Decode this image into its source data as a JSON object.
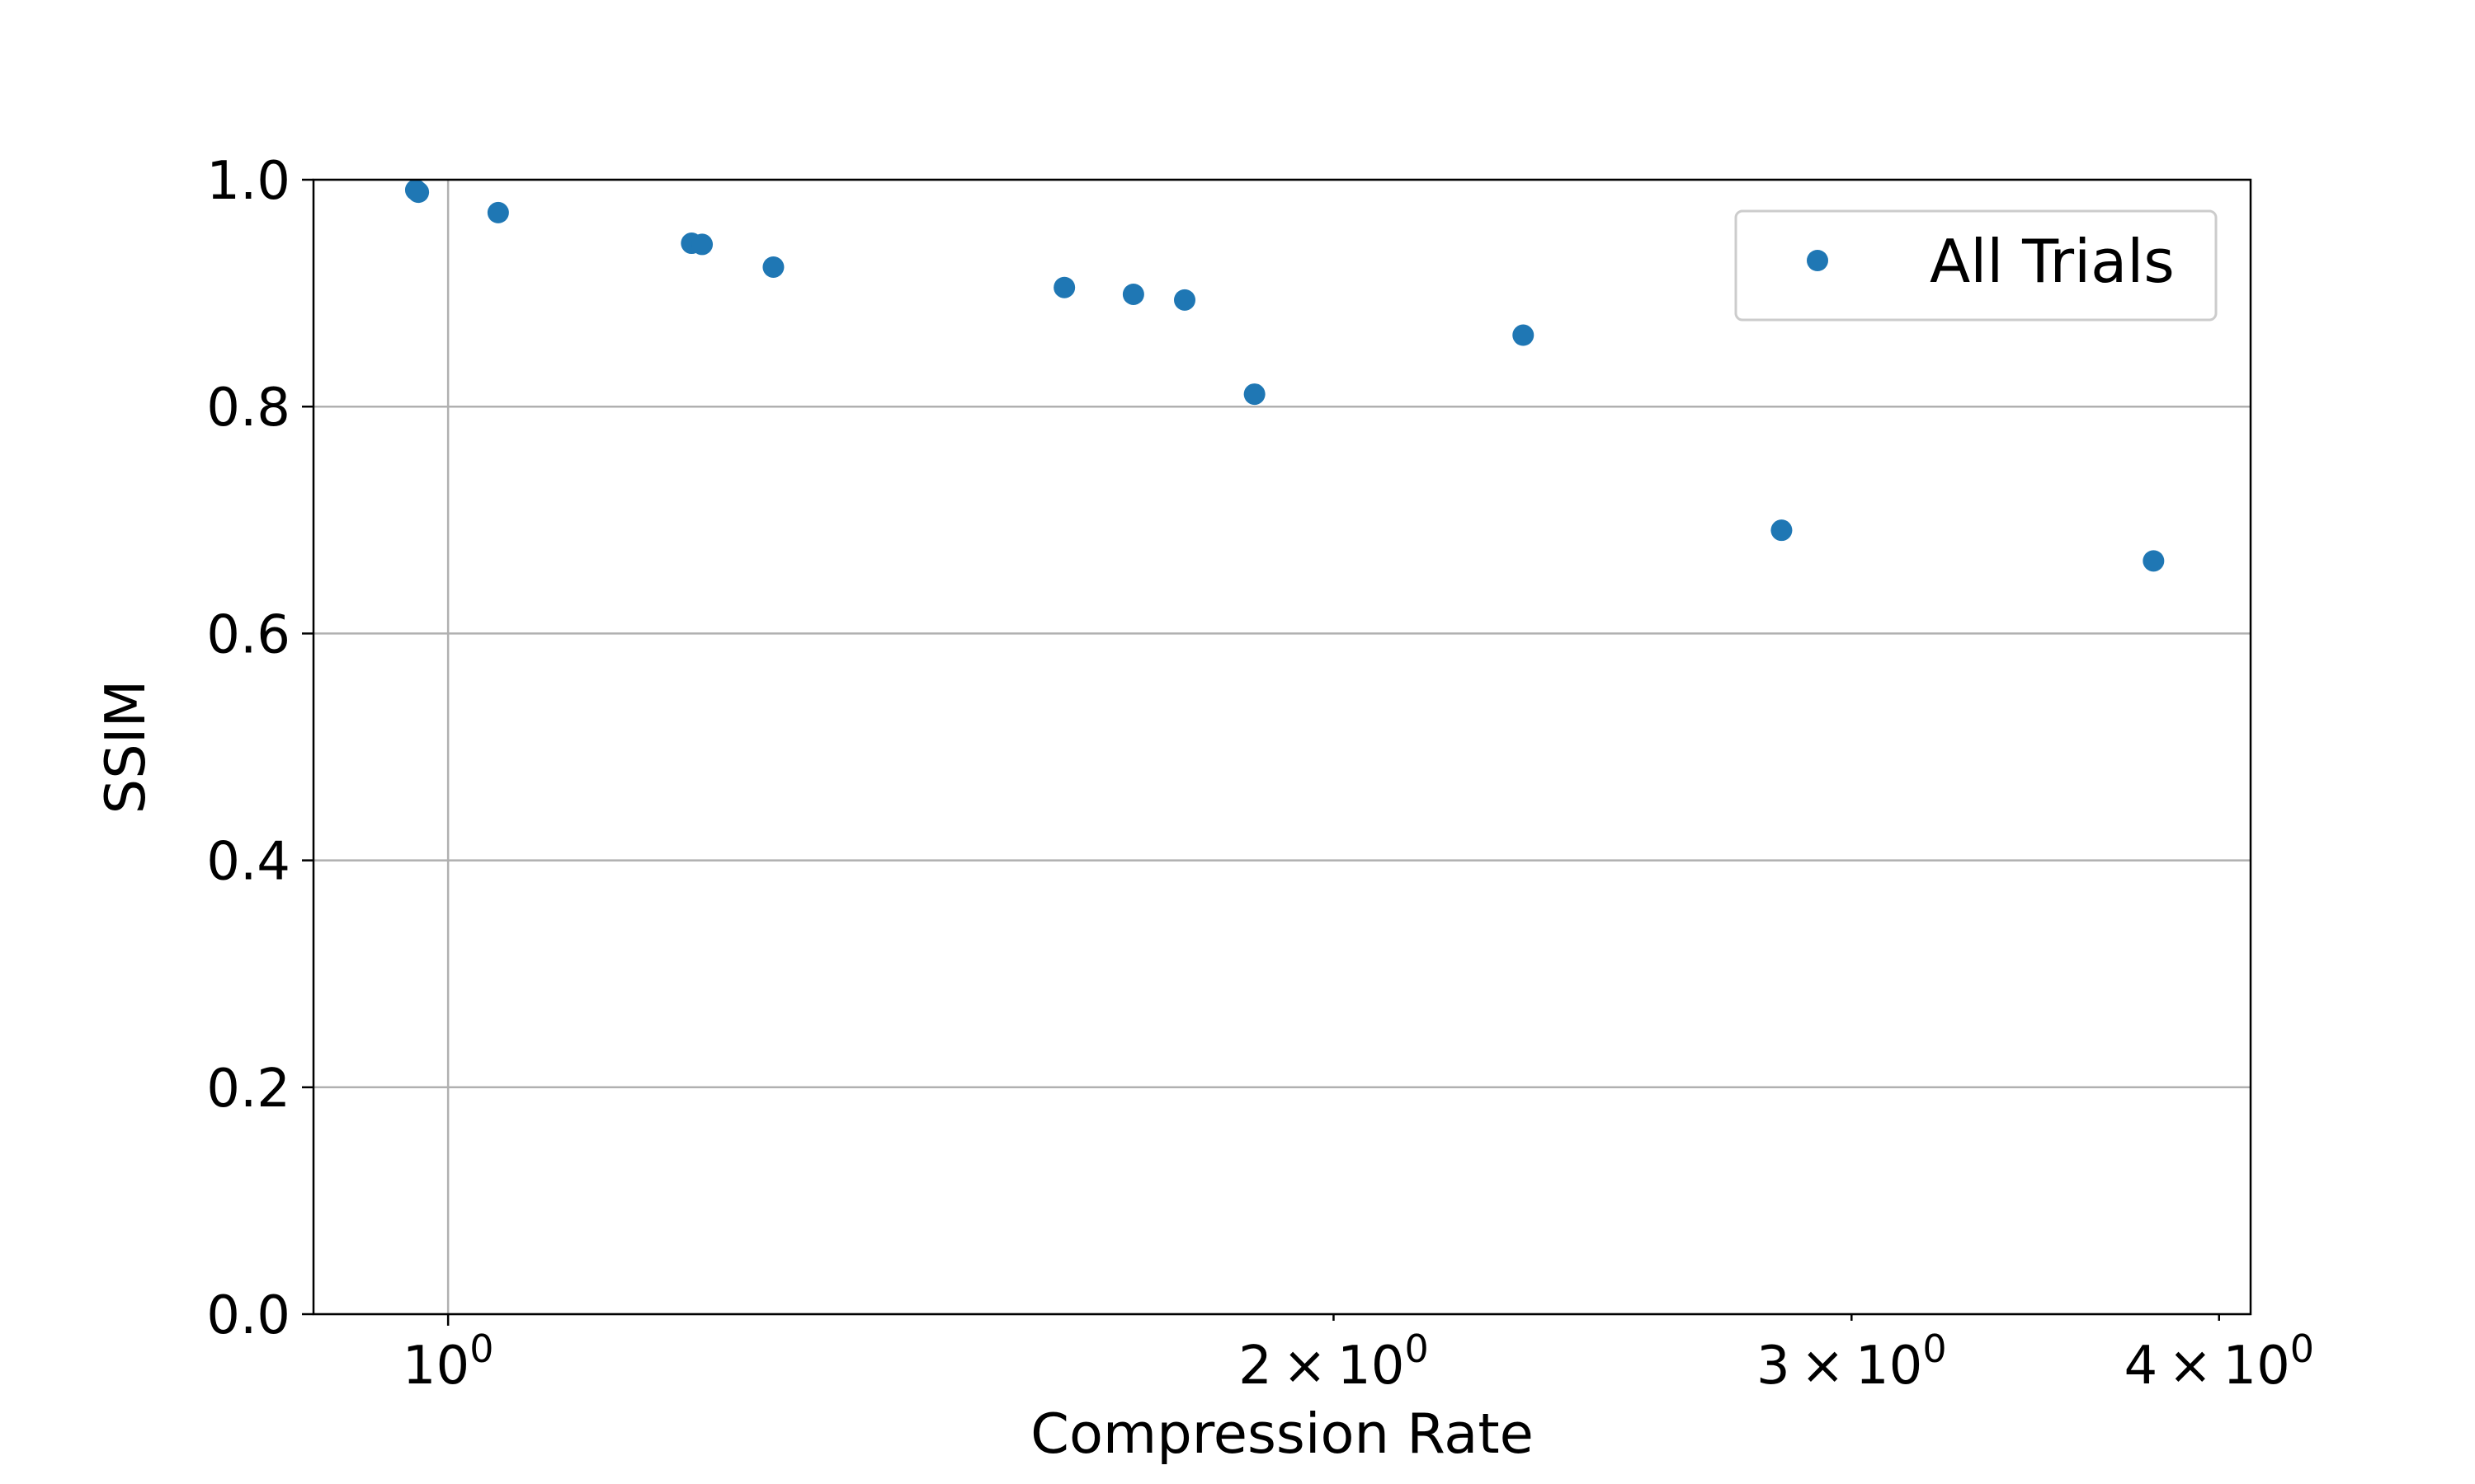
{
  "chart_data": {
    "type": "scatter",
    "title": "",
    "xlabel": "Compression Rate",
    "ylabel": "SSIM",
    "xscale": "log",
    "xlim": [
      0.9,
      4.1
    ],
    "ylim": [
      0.0,
      1.0
    ],
    "grid": true,
    "legend": {
      "position": "top-right",
      "entries": [
        "All Trials"
      ]
    },
    "colors": {
      "series": "#1f77b4",
      "grid": "#b0b0b0",
      "axes": "#000000"
    },
    "x_ticks": [
      {
        "value": 1,
        "base": "10",
        "exp": "0"
      },
      {
        "value": 2,
        "coef": "2",
        "times": "×",
        "base": "10",
        "exp": "0"
      },
      {
        "value": 3,
        "coef": "3",
        "times": "×",
        "base": "10",
        "exp": "0"
      },
      {
        "value": 4,
        "coef": "4",
        "times": "×",
        "base": "10",
        "exp": "0"
      }
    ],
    "y_ticks": [
      {
        "value": 0.0,
        "label": "0.0"
      },
      {
        "value": 0.2,
        "label": "0.2"
      },
      {
        "value": 0.4,
        "label": "0.4"
      },
      {
        "value": 0.6,
        "label": "0.6"
      },
      {
        "value": 0.8,
        "label": "0.8"
      },
      {
        "value": 1.0,
        "label": "1.0"
      }
    ],
    "series": [
      {
        "name": "All Trials",
        "points": [
          {
            "x": 0.975,
            "y": 0.991
          },
          {
            "x": 0.977,
            "y": 0.989
          },
          {
            "x": 1.04,
            "y": 0.971
          },
          {
            "x": 1.21,
            "y": 0.944
          },
          {
            "x": 1.22,
            "y": 0.943
          },
          {
            "x": 1.29,
            "y": 0.923
          },
          {
            "x": 1.62,
            "y": 0.905
          },
          {
            "x": 1.71,
            "y": 0.899
          },
          {
            "x": 1.78,
            "y": 0.894
          },
          {
            "x": 1.88,
            "y": 0.811
          },
          {
            "x": 2.32,
            "y": 0.863
          },
          {
            "x": 2.84,
            "y": 0.691
          },
          {
            "x": 3.8,
            "y": 0.664
          }
        ]
      }
    ]
  }
}
